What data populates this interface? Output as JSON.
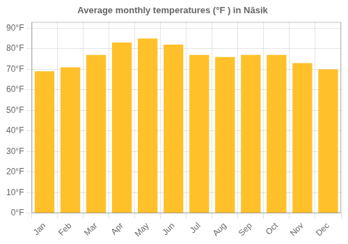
{
  "chart_data": {
    "type": "bar",
    "title": "Average monthly temperatures (°F ) in Nāsik",
    "categories": [
      "Jan",
      "Feb",
      "Mar",
      "Apr",
      "May",
      "Jun",
      "Jul",
      "Aug",
      "Sep",
      "Oct",
      "Nov",
      "Dec"
    ],
    "values": [
      69,
      71,
      77,
      83,
      85,
      82,
      77,
      76,
      77,
      77,
      73,
      70
    ],
    "color": "#FFC02A",
    "ylim": [
      0,
      93
    ],
    "yticks": [
      {
        "value": 0,
        "label": "0°F"
      },
      {
        "value": 10,
        "label": "10°F"
      },
      {
        "value": 20,
        "label": "20°F"
      },
      {
        "value": 30,
        "label": "30°F"
      },
      {
        "value": 40,
        "label": "40°F"
      },
      {
        "value": 50,
        "label": "50°F"
      },
      {
        "value": 60,
        "label": "60°F"
      },
      {
        "value": 70,
        "label": "70°F"
      },
      {
        "value": 80,
        "label": "80°F"
      },
      {
        "value": 90,
        "label": "90°F"
      }
    ],
    "grid": true
  }
}
